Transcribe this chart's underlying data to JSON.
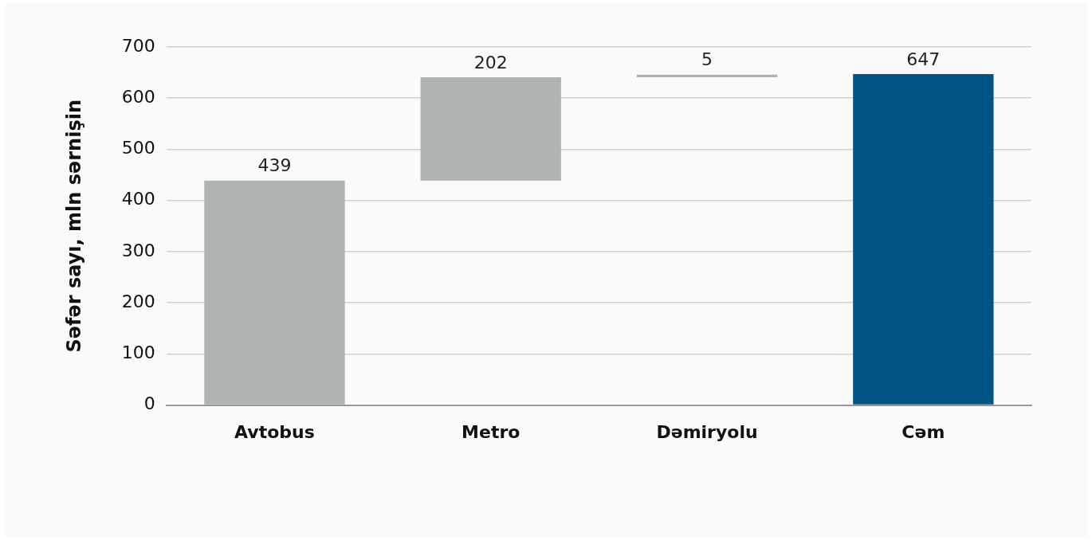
{
  "chart_data": {
    "type": "bar",
    "ylabel": "Səfər sayı, mln sərnişin",
    "categories": [
      "Avtobus",
      "Metro",
      "Dəmiryolu",
      "Cəm"
    ],
    "values": [
      439,
      202,
      5,
      647
    ],
    "base": [
      0,
      439,
      641,
      0
    ],
    "colors": [
      "#b0b3b3",
      "#b0b3b3",
      "#b0b3b3",
      "#005587"
    ],
    "ylim": [
      0,
      700
    ],
    "yticks": [
      0,
      100,
      200,
      300,
      400,
      500,
      600,
      700
    ],
    "grid": "y",
    "legend": false,
    "data_labels": true
  }
}
